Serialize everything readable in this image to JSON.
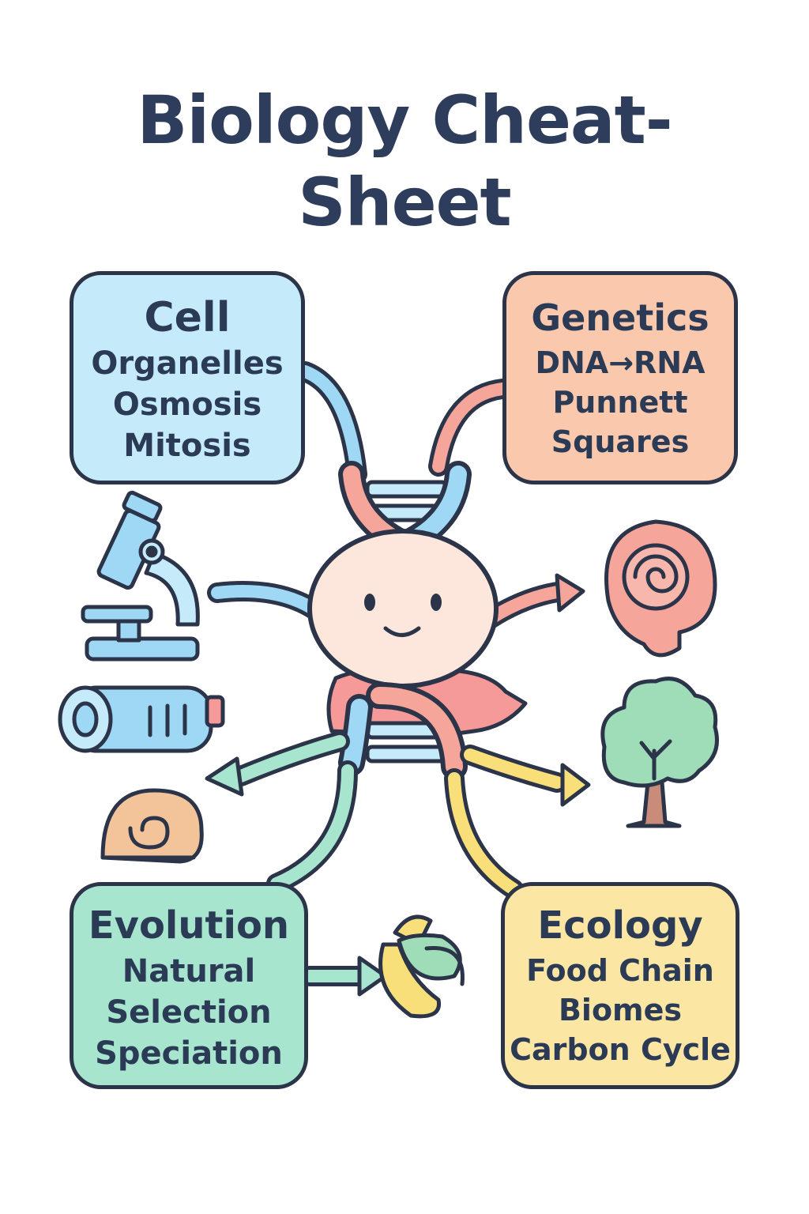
{
  "title": {
    "line1": "Biology Cheat-",
    "line2": "Sheet"
  },
  "topics": {
    "cell": {
      "heading": "Cell",
      "items": [
        "Organelles",
        "Osmosis",
        "Mitosis"
      ],
      "color": "#c5ebfb"
    },
    "genetics": {
      "heading": "Genetics",
      "items": [
        "DNA→RNA",
        "Punnett",
        "Squares"
      ],
      "color": "#f9c8ad"
    },
    "evolution": {
      "heading": "Evolution",
      "items": [
        "Natural",
        "Selection",
        "Speciation"
      ],
      "color": "#a7e5cf"
    },
    "ecology": {
      "heading": "Ecology",
      "items": [
        "Food Chain",
        "Biomes",
        "Carbon Cycle"
      ],
      "color": "#fbe6a3"
    }
  },
  "icons": [
    "microscope-icon",
    "test-tube-icon",
    "snail-shell-icon",
    "ammonite-fossil-icon",
    "tree-icon",
    "flower-icon",
    "cell-mascot-icon",
    "dna-helix-icon"
  ],
  "colors": {
    "outline": "#2b3448",
    "text": "#2f3d5c",
    "blue": "#9ed8f5",
    "pink": "#f5a59a",
    "green": "#a7e5cf",
    "yellow": "#f8df7a"
  }
}
